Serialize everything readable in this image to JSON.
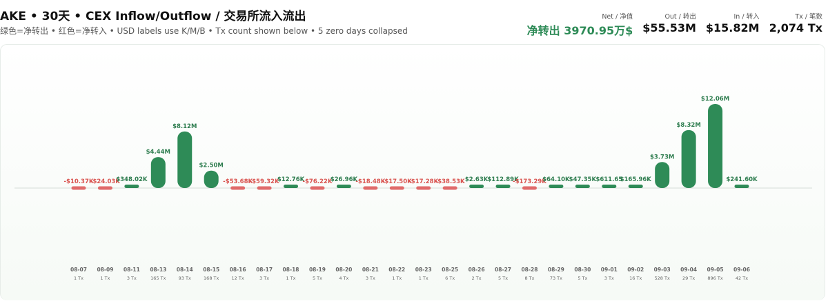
{
  "header": {
    "title": "AKE • 30天 • CEX Inflow/Outflow / 交易所流入流出",
    "subtitle": "绿色=净转出 • 红色=净转入 • USD labels use K/M/B • Tx count shown below • 5 zero days collapsed"
  },
  "stats": [
    {
      "label": "Net / 净值",
      "value": "净转出 3970.95万$",
      "kind": "net"
    },
    {
      "label": "Out / 转出",
      "value": "$55.53M",
      "kind": "plain"
    },
    {
      "label": "In / 转入",
      "value": "$15.82M",
      "kind": "plain"
    },
    {
      "label": "Tx / 笔数",
      "value": "2,074 Tx",
      "kind": "plain"
    }
  ],
  "colors": {
    "positive": "#2e8b57",
    "negative": "#e06a6a",
    "baseline": "#d6ddd8"
  },
  "chart_data": {
    "type": "bar",
    "categories": [
      "08-07",
      "08-09",
      "08-11",
      "08-13",
      "08-14",
      "08-15",
      "08-16",
      "08-17",
      "08-18",
      "08-19",
      "08-20",
      "08-21",
      "08-22",
      "08-23",
      "08-25",
      "08-26",
      "08-27",
      "08-28",
      "08-29",
      "08-30",
      "09-01",
      "09-02",
      "09-03",
      "09-04",
      "09-05",
      "09-06"
    ],
    "values": [
      -10370,
      -24030,
      348020,
      4440000,
      8120000,
      2500000,
      -53680,
      -59320,
      12760,
      -76220,
      26960,
      -18480,
      -17500,
      -17280,
      -38530,
      2630,
      112890,
      -173290,
      64100,
      47350,
      611.65,
      165960,
      3730000,
      8320000,
      12060000,
      241600
    ],
    "data_labels": [
      "-$10.37K",
      "-$24.03K",
      "$348.02K",
      "$4.44M",
      "$8.12M",
      "$2.50M",
      "-$53.68K",
      "-$59.32K",
      "$12.76K",
      "-$76.22K",
      "$26.96K",
      "-$18.48K",
      "-$17.50K",
      "-$17.28K",
      "-$38.53K",
      "$2.63K",
      "$112.89K",
      "-$173.29K",
      "$64.10K",
      "$47.35K",
      "$611.65",
      "$165.96K",
      "$3.73M",
      "$8.32M",
      "$12.06M",
      "$241.60K"
    ],
    "tx_labels": [
      "1 Tx",
      "1 Tx",
      "3 Tx",
      "165 Tx",
      "93 Tx",
      "168 Tx",
      "12 Tx",
      "3 Tx",
      "1 Tx",
      "5 Tx",
      "4 Tx",
      "3 Tx",
      "1 Tx",
      "1 Tx",
      "6 Tx",
      "2 Tx",
      "5 Tx",
      "8 Tx",
      "73 Tx",
      "5 Tx",
      "3 Tx",
      "16 Tx",
      "528 Tx",
      "29 Tx",
      "896 Tx",
      "42 Tx"
    ],
    "ylim": [
      0,
      12060000
    ],
    "grid": false,
    "legend": "none"
  }
}
